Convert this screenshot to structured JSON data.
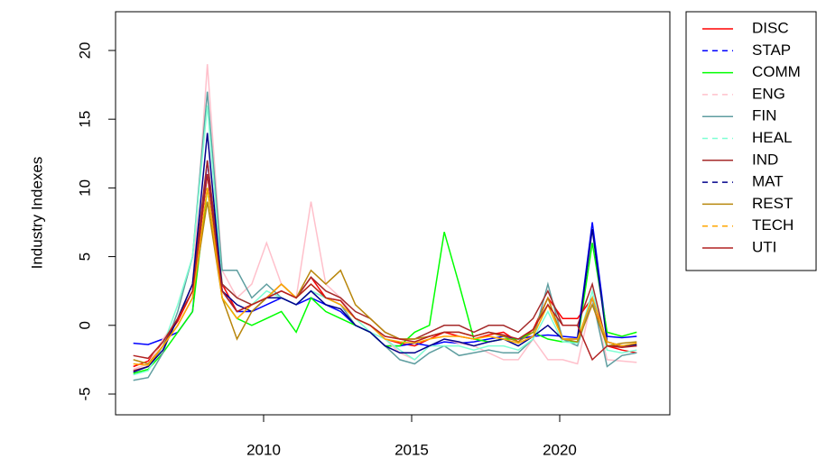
{
  "chart_data": {
    "type": "line",
    "y_label": "Industry Indexes",
    "x": [
      2005.6,
      2006.1,
      2006.6,
      2007.1,
      2007.6,
      2008.1,
      2008.6,
      2009.1,
      2009.6,
      2010.1,
      2010.6,
      2011.1,
      2011.6,
      2012.1,
      2012.6,
      2013.1,
      2013.6,
      2014.1,
      2014.6,
      2015.1,
      2015.6,
      2016.1,
      2016.6,
      2017.1,
      2017.6,
      2018.1,
      2018.6,
      2019.1,
      2019.6,
      2020.1,
      2020.6,
      2021.1,
      2021.6,
      2022.1,
      2022.6
    ],
    "xlim": [
      2005.0,
      2023.72
    ],
    "xticks": [
      2010,
      2015,
      2020
    ],
    "ylim": [
      -6.51,
      22.82
    ],
    "yticks": [
      -5,
      0,
      5,
      10,
      15,
      20
    ],
    "legend_position": "right",
    "series": [
      {
        "name": "DISC",
        "color": "#ff0000",
        "lty": "solid",
        "values": [
          -3,
          -2.6,
          -1.2,
          0.3,
          2.5,
          11,
          3,
          1,
          1.5,
          2,
          2.5,
          2,
          3.5,
          2,
          1.8,
          0.5,
          0,
          -1,
          -1.3,
          -1.5,
          -1,
          -0.5,
          -0.8,
          -1,
          -0.7,
          -0.5,
          -1.2,
          -0.3,
          2,
          0.5,
          0.5,
          2,
          -1.5,
          -1.8,
          -2
        ]
      },
      {
        "name": "STAP",
        "color": "#0000ff",
        "lty": "dashed",
        "values": [
          -1.3,
          -1.4,
          -1,
          -0.5,
          1,
          12,
          2.5,
          1,
          1,
          1.5,
          2,
          1.5,
          2,
          1.5,
          1,
          0,
          -0.5,
          -1.5,
          -1.5,
          -1.3,
          -1.5,
          -1.2,
          -1.3,
          -1.2,
          -1,
          -0.8,
          -1,
          -0.8,
          -0.7,
          -0.8,
          -0.9,
          7.5,
          -0.8,
          -0.9,
          -0.8
        ]
      },
      {
        "name": "COMM",
        "color": "#00ff00",
        "lty": "solid",
        "values": [
          -3.5,
          -3.2,
          -2,
          -0.5,
          1,
          10,
          2,
          0.5,
          0,
          0.5,
          1,
          -0.5,
          2,
          1,
          0.5,
          0,
          -0.5,
          -1.5,
          -1.5,
          -0.5,
          0,
          6.8,
          3,
          -1,
          -1.2,
          -1,
          -1,
          -0.5,
          -1,
          -1.2,
          -1.2,
          6,
          -0.5,
          -0.8,
          -0.5
        ]
      },
      {
        "name": "ENG",
        "color": "#ffc0cb",
        "lty": "dashed",
        "values": [
          -3.2,
          -2.8,
          -1,
          0.5,
          3,
          19,
          4,
          2,
          3,
          6,
          3,
          2,
          9,
          3,
          2,
          0.5,
          0,
          -1,
          -2,
          -2.5,
          -1.5,
          -1,
          -1.3,
          -1.5,
          -2,
          -2.5,
          -2.5,
          -1,
          -2.5,
          -2.5,
          -2.8,
          2,
          -2.5,
          -2.6,
          -2.7
        ]
      },
      {
        "name": "FIN",
        "color": "#5f9ea0",
        "lty": "solid",
        "values": [
          -4,
          -3.8,
          -2,
          1,
          5,
          17,
          4,
          4,
          2,
          3,
          2,
          1.5,
          2.5,
          2,
          1.5,
          0,
          -0.5,
          -1.5,
          -2.5,
          -2.8,
          -2,
          -1.5,
          -2.2,
          -2,
          -1.8,
          -2,
          -2,
          -1,
          3,
          -1,
          -1.5,
          2,
          -3,
          -2.2,
          -2
        ]
      },
      {
        "name": "HEAL",
        "color": "#7fffd4",
        "lty": "dashed",
        "values": [
          -3.6,
          -3.3,
          -1.5,
          1.5,
          5,
          16,
          3,
          2,
          1.5,
          2.5,
          2,
          1.5,
          2.5,
          2,
          1.5,
          0.5,
          -0.5,
          -1,
          -1.8,
          -2.5,
          -1.5,
          -1.5,
          -1.5,
          -1.8,
          -1.5,
          -1.5,
          -1.8,
          -1,
          1,
          -1.2,
          -1.3,
          2.5,
          -1.8,
          -2,
          -1.8
        ]
      },
      {
        "name": "IND",
        "color": "#a52a2a",
        "lty": "solid",
        "values": [
          -3.3,
          -3,
          -1.5,
          0.5,
          3,
          12,
          3,
          2,
          1.5,
          2,
          3,
          2,
          3.5,
          2.5,
          2,
          1,
          0.5,
          -0.5,
          -1,
          -1,
          -0.5,
          0,
          0,
          -0.5,
          0,
          0,
          -0.5,
          0.5,
          2.5,
          0,
          0,
          3,
          -1.5,
          -1.5,
          -1.5
        ]
      },
      {
        "name": "MAT",
        "color": "#00008b",
        "lty": "dashed",
        "values": [
          -3.4,
          -3,
          -1.8,
          0.5,
          3,
          14,
          2.5,
          1.5,
          1,
          2,
          2,
          1.5,
          2.5,
          1.5,
          1.2,
          0,
          -0.5,
          -1.5,
          -2,
          -2,
          -1.5,
          -1,
          -1.2,
          -1.5,
          -1.2,
          -1,
          -1.5,
          -0.8,
          0,
          -1,
          -1,
          7,
          -1.2,
          -1.5,
          -1.4
        ]
      },
      {
        "name": "REST",
        "color": "#b8860b",
        "lty": "solid",
        "values": [
          -2.5,
          -2.8,
          -1.5,
          0,
          2,
          9,
          2,
          -1,
          1,
          2,
          3,
          2,
          4,
          3,
          4,
          1.5,
          0.5,
          -0.5,
          -1,
          -1,
          -0.8,
          -0.5,
          -0.5,
          -0.8,
          -0.5,
          -0.8,
          -1.2,
          -0.5,
          2,
          -1,
          -1.2,
          1.5,
          -1.5,
          -1.3,
          -1.2
        ]
      },
      {
        "name": "TECH",
        "color": "#ffa500",
        "lty": "dashed",
        "values": [
          -2.8,
          -2.9,
          -1.5,
          0,
          2,
          10,
          2,
          0.5,
          1.5,
          2,
          3,
          2,
          3,
          2,
          1.5,
          0.5,
          0,
          -1,
          -1.2,
          -1.3,
          -1,
          -0.8,
          -0.8,
          -1,
          -0.8,
          -1,
          -1.3,
          -0.8,
          1.5,
          -1,
          -1,
          2,
          -1.2,
          -1.5,
          -1.3
        ]
      },
      {
        "name": "UTI",
        "color": "#b22222",
        "lty": "solid",
        "values": [
          -2.2,
          -2.4,
          -1.2,
          0.5,
          2.5,
          11,
          2.5,
          1,
          1.5,
          2,
          2.5,
          2,
          3,
          2,
          1.8,
          0.5,
          0,
          -0.8,
          -1,
          -1.2,
          -0.8,
          -0.5,
          -0.5,
          -0.8,
          -0.5,
          -0.7,
          -1,
          -0.3,
          1.5,
          0,
          0,
          -2.5,
          -1.5,
          -1.6,
          -1.5
        ]
      }
    ]
  }
}
